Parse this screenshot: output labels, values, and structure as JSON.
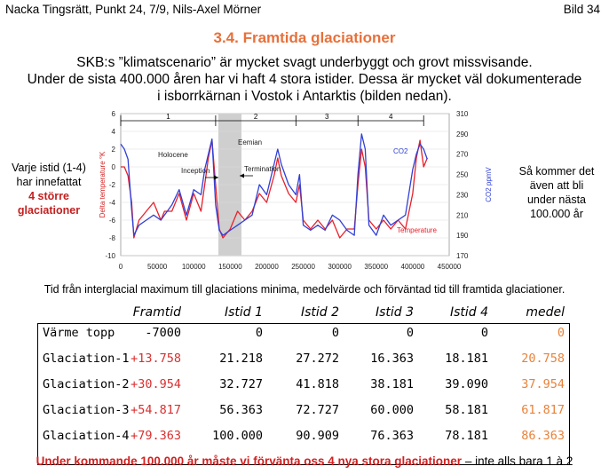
{
  "header": {
    "left": "Nacka Tingsrätt, Punkt 24, 7/9, Nils-Axel Mörner",
    "right": "Bild 34"
  },
  "title": "3.4. Framtida glaciationer",
  "intro": {
    "line1": "SKB:s ”klimatscenario” är mycket svagt underbyggt och grovt missvisande.",
    "line2": "Under de sista 400.000 åren har vi haft 4 stora istider. Dessa är mycket väl dokumenterade",
    "line3": "i isborrkärnan i Vostok i Antarktis (bilden nedan)."
  },
  "side_left": {
    "line1": "Varje istid (1-4)",
    "line2": "har innefattat",
    "line3": "4 större",
    "line4": "glaciationer"
  },
  "side_right": {
    "line1": "Så kommer det",
    "line2": "även att bli",
    "line3": "under nästa",
    "line4": "100.000 år"
  },
  "chart_data": {
    "type": "line",
    "ylabel_left": "Delta temperature °K",
    "ylabel_right": "CO2 ppmV",
    "x_ticks": [
      "0",
      "50000",
      "100000",
      "150000",
      "200000",
      "250000",
      "300000",
      "350000",
      "400000",
      "450000"
    ],
    "y_left_ticks": [
      "6",
      "4",
      "2",
      "0",
      "-2",
      "-4",
      "-6",
      "-8",
      "-10"
    ],
    "y_right_ticks": [
      "310",
      "290",
      "270",
      "250",
      "230",
      "210",
      "190",
      "170"
    ],
    "xlim": [
      0,
      450000
    ],
    "ylim_left": [
      -10,
      6
    ],
    "ylim_right": [
      170,
      310
    ],
    "period_labels": [
      "1",
      "2",
      "3",
      "4"
    ],
    "annotations": {
      "holocene": "Holocene",
      "inception": "Inception",
      "eemian": "Eemian",
      "termination": "Termination",
      "co2": "CO2",
      "temperature": "Temperature"
    },
    "series": [
      {
        "name": "Temperature",
        "color": "#e8202a",
        "x": [
          0,
          5000,
          10000,
          15000,
          18000,
          25000,
          35000,
          45000,
          55000,
          60000,
          70000,
          80000,
          90000,
          100000,
          110000,
          115000,
          120000,
          125000,
          130000,
          135000,
          140000,
          150000,
          160000,
          170000,
          180000,
          190000,
          200000,
          210000,
          215000,
          220000,
          230000,
          240000,
          245000,
          250000,
          260000,
          270000,
          280000,
          290000,
          300000,
          310000,
          320000,
          325000,
          330000,
          335000,
          340000,
          350000,
          360000,
          370000,
          380000,
          390000,
          400000,
          405000,
          410000,
          415000,
          420000
        ],
        "y": [
          0,
          0,
          -1,
          -4,
          -8,
          -6,
          -5,
          -4,
          -6,
          -5,
          -5,
          -3,
          -6,
          -3,
          -5,
          -2,
          1,
          3,
          -2,
          -7,
          -8,
          -7,
          -5,
          -6,
          -5,
          -3,
          -4,
          -1,
          1,
          -1,
          -3,
          -4,
          -2,
          -6,
          -7,
          -6,
          -7,
          -6,
          -8,
          -7,
          -7,
          -2,
          2,
          0,
          -6,
          -7,
          -6,
          -7,
          -6,
          -7,
          -3,
          1,
          3,
          0,
          1
        ]
      },
      {
        "name": "CO2",
        "color": "#3040d8",
        "x": [
          0,
          5000,
          10000,
          15000,
          18000,
          25000,
          35000,
          45000,
          55000,
          60000,
          70000,
          80000,
          90000,
          100000,
          110000,
          115000,
          120000,
          125000,
          130000,
          135000,
          140000,
          150000,
          160000,
          170000,
          180000,
          190000,
          200000,
          210000,
          215000,
          220000,
          230000,
          240000,
          245000,
          250000,
          260000,
          270000,
          280000,
          290000,
          300000,
          310000,
          320000,
          325000,
          330000,
          335000,
          340000,
          350000,
          360000,
          370000,
          380000,
          390000,
          400000,
          405000,
          410000,
          415000,
          420000
        ],
        "y": [
          280,
          275,
          265,
          215,
          190,
          200,
          205,
          210,
          205,
          210,
          220,
          235,
          210,
          235,
          230,
          255,
          270,
          285,
          220,
          195,
          190,
          195,
          200,
          205,
          210,
          240,
          230,
          260,
          275,
          260,
          240,
          230,
          250,
          200,
          195,
          200,
          195,
          210,
          205,
          195,
          190,
          250,
          290,
          275,
          200,
          190,
          210,
          200,
          205,
          210,
          255,
          270,
          280,
          275,
          265
        ]
      }
    ]
  },
  "table_caption": "Tid från interglacial maximum till glaciations minima, medelvärde och förväntad tid till framtida glaciationer.",
  "table": {
    "headers": [
      "Framtid",
      "Istid 1",
      "Istid 2",
      "Istid 3",
      "Istid 4",
      "medel"
    ],
    "rows": [
      {
        "label": "Värme topp",
        "cells": [
          "-7000",
          "0",
          "0",
          "0",
          "0",
          "0"
        ]
      },
      {
        "label": "Glaciation-1",
        "cells": [
          "+13.758",
          "21.218",
          "27.272",
          "16.363",
          "18.181",
          "20.758"
        ]
      },
      {
        "label": "Glaciation-2",
        "cells": [
          "+30.954",
          "32.727",
          "41.818",
          "38.181",
          "39.090",
          "37.954"
        ]
      },
      {
        "label": "Glaciation-3",
        "cells": [
          "+54.817",
          "56.363",
          "72.727",
          "60.000",
          "58.181",
          "61.817"
        ]
      },
      {
        "label": "Glaciation-4",
        "cells": [
          "+79.363",
          "100.000",
          "90.909",
          "76.363",
          "78.181",
          "86.363"
        ]
      }
    ]
  },
  "footer": {
    "bold": "Under kommande 100.000 år måste vi förvänta oss 4 nya stora glaciationer",
    "rest": " – inte alls bara 1 à 2"
  },
  "colors": {
    "title": "#e8703a",
    "red": "#d42020",
    "orange": "#e8823a",
    "temperature": "#e8202a",
    "co2": "#3040d8"
  }
}
